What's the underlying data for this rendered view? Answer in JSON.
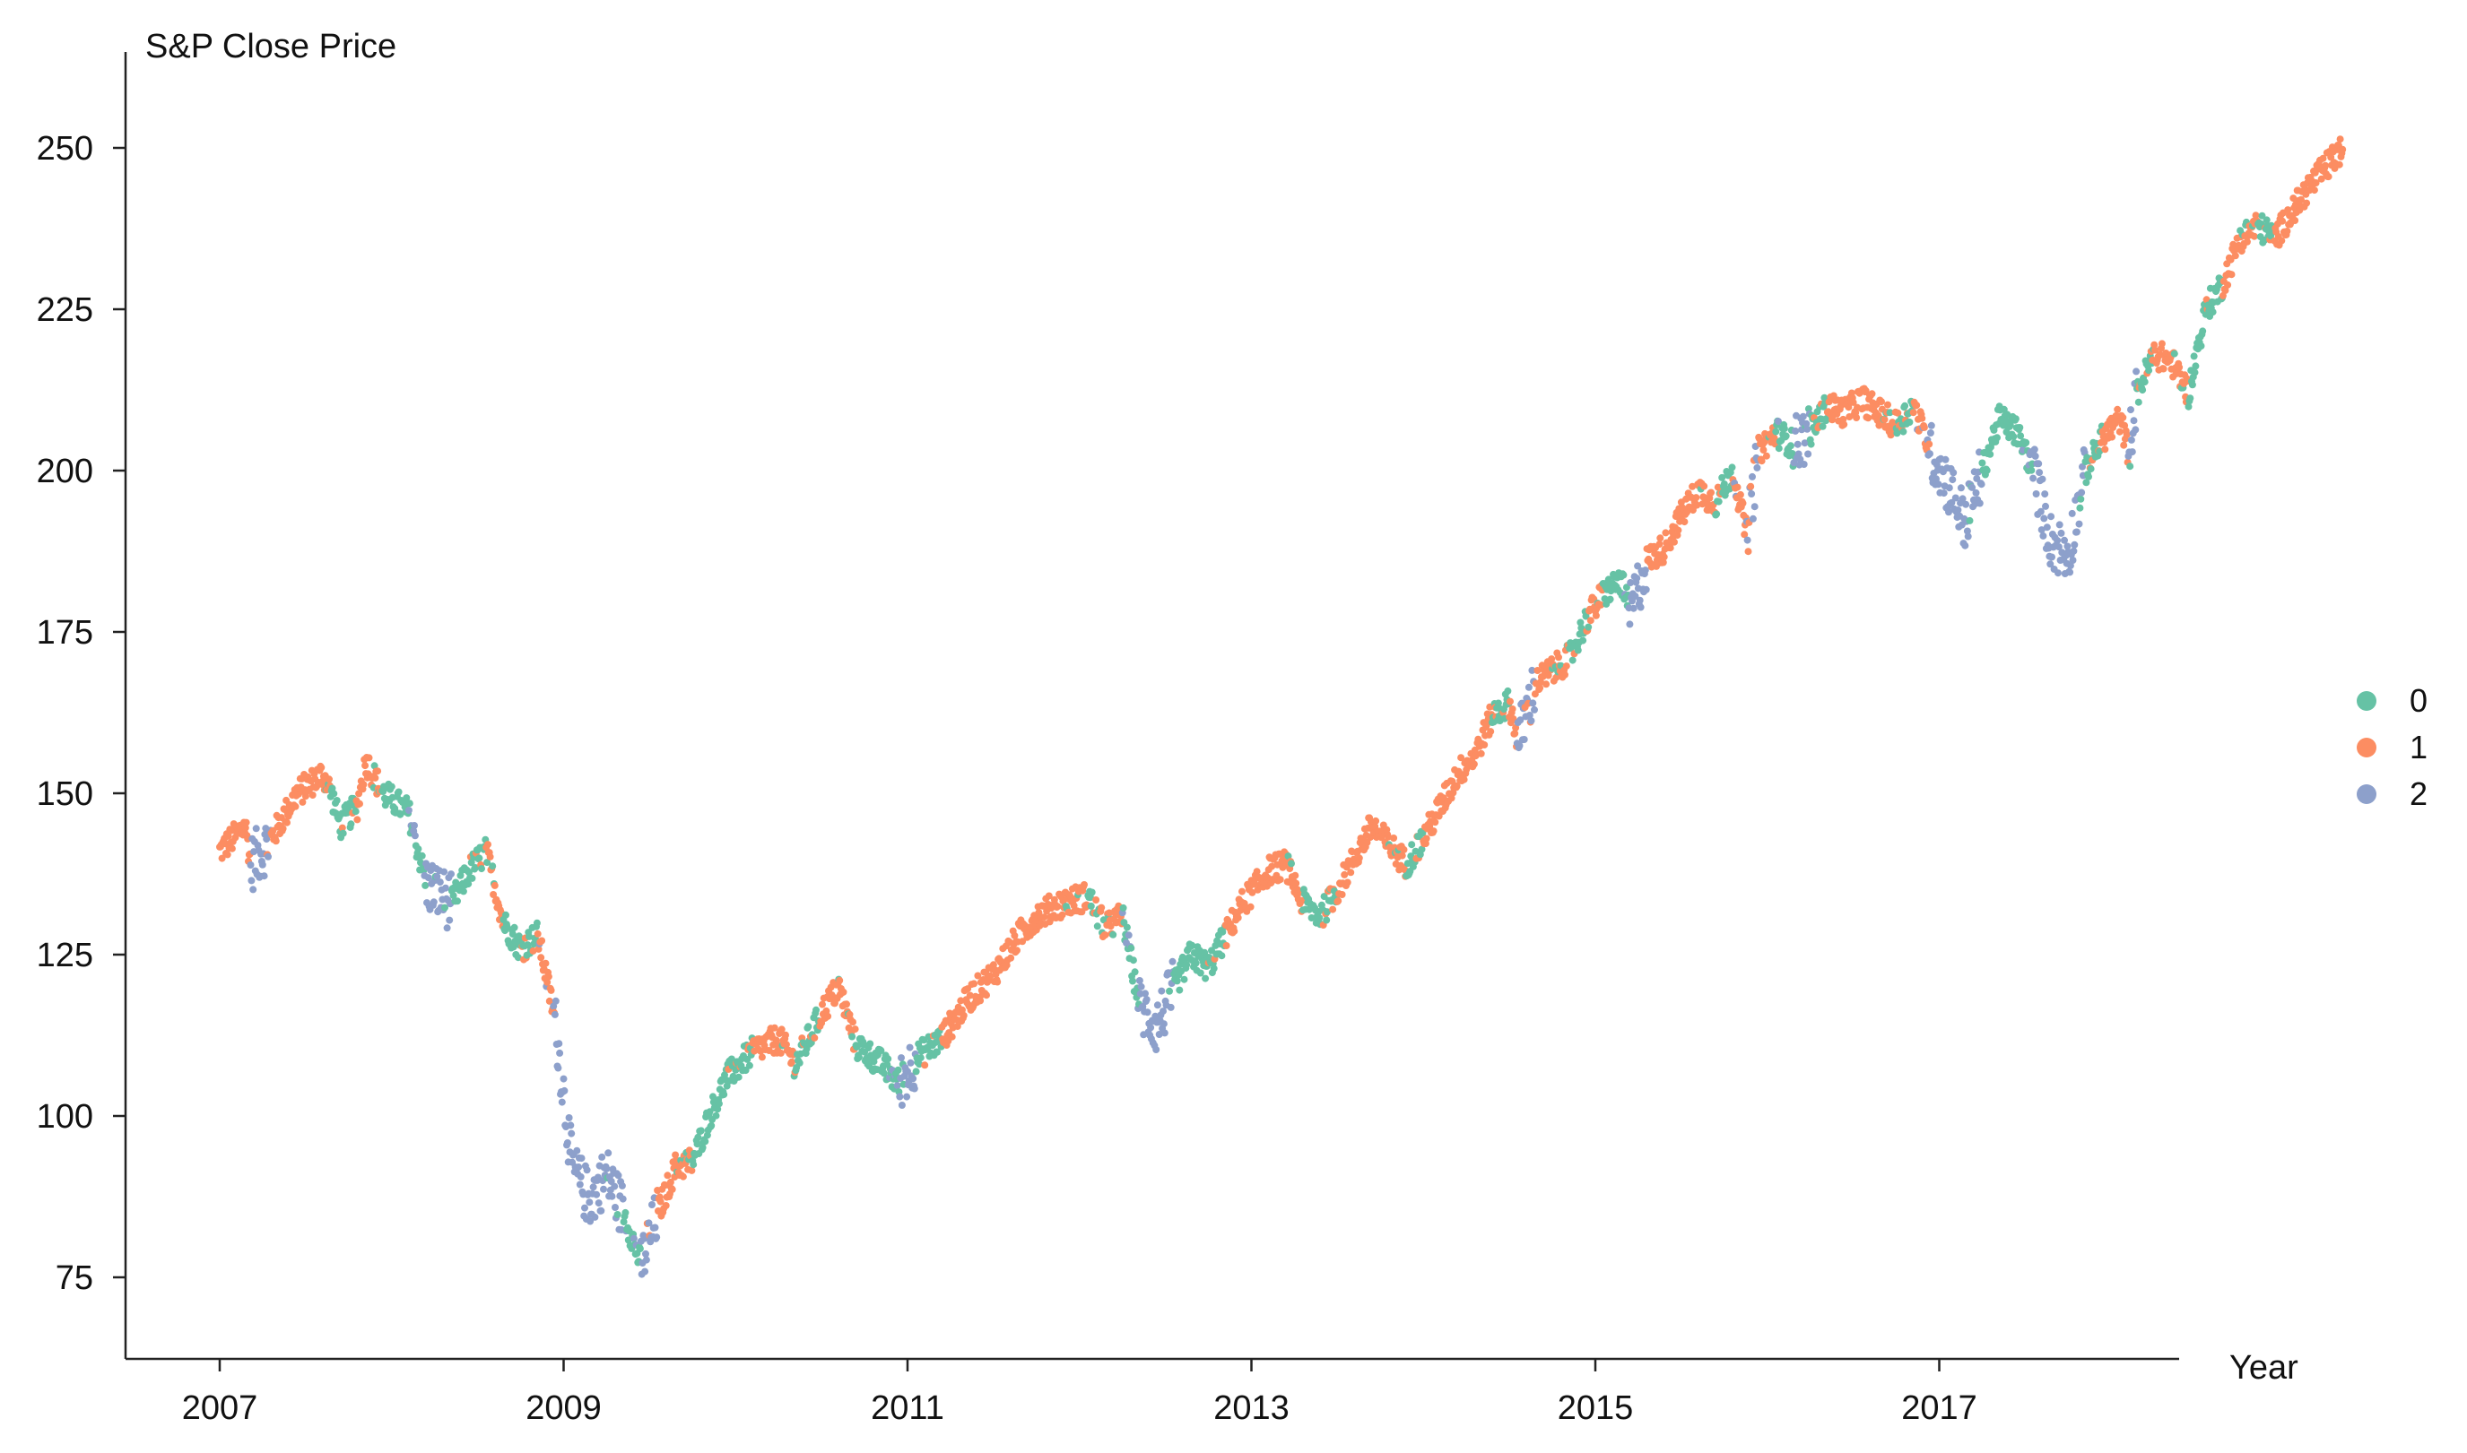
{
  "colors": {
    "cluster_0": "#66c2a5",
    "cluster_1": "#fc8d62",
    "cluster_2": "#8da0cb",
    "axis": "#222222"
  },
  "chart_data": {
    "type": "scatter",
    "title": "",
    "ylabel": "S&P Close Price",
    "xlabel": "Year",
    "x_scale": "time",
    "xlim": [
      2006.75,
      2018.75
    ],
    "ylim": [
      60,
      260
    ],
    "x_ticks": [
      "2007",
      "2009",
      "2011",
      "2013",
      "2015",
      "2017"
    ],
    "y_ticks": [
      "75",
      "100",
      "125",
      "150",
      "175",
      "200",
      "225",
      "250"
    ],
    "grid": false,
    "legend_position": "right",
    "legend": [
      "0",
      "1",
      "2"
    ],
    "price_path": [
      [
        2007.0,
        141,
        1
      ],
      [
        2007.15,
        145,
        1
      ],
      [
        2007.18,
        139,
        2
      ],
      [
        2007.3,
        143,
        1
      ],
      [
        2007.45,
        150,
        1
      ],
      [
        2007.6,
        153,
        1
      ],
      [
        2007.65,
        150,
        0
      ],
      [
        2007.7,
        145,
        0
      ],
      [
        2007.8,
        148,
        1
      ],
      [
        2007.85,
        155,
        1
      ],
      [
        2007.95,
        150,
        0
      ],
      [
        2008.1,
        147,
        0
      ],
      [
        2008.2,
        136,
        2
      ],
      [
        2008.35,
        133,
        0
      ],
      [
        2008.45,
        138,
        0
      ],
      [
        2008.55,
        141,
        1
      ],
      [
        2008.65,
        130,
        0
      ],
      [
        2008.75,
        126,
        0
      ],
      [
        2008.85,
        128,
        1
      ],
      [
        2008.95,
        115,
        2
      ],
      [
        2009.05,
        92,
        2
      ],
      [
        2009.15,
        87,
        2
      ],
      [
        2009.25,
        91,
        2
      ],
      [
        2009.35,
        85,
        0
      ],
      [
        2009.45,
        77,
        2
      ],
      [
        2009.55,
        85,
        1
      ],
      [
        2009.65,
        92,
        1
      ],
      [
        2009.75,
        93,
        0
      ],
      [
        2009.85,
        100,
        0
      ],
      [
        2009.95,
        106,
        0
      ],
      [
        2010.1,
        110,
        1
      ],
      [
        2010.25,
        112,
        1
      ],
      [
        2010.35,
        108,
        0
      ],
      [
        2010.5,
        116,
        1
      ],
      [
        2010.6,
        120,
        1
      ],
      [
        2010.7,
        111,
        0
      ],
      [
        2010.85,
        108,
        0
      ],
      [
        2010.95,
        105,
        2
      ],
      [
        2011.05,
        109,
        0
      ],
      [
        2011.2,
        112,
        1
      ],
      [
        2011.35,
        118,
        1
      ],
      [
        2011.5,
        122,
        1
      ],
      [
        2011.65,
        128,
        1
      ],
      [
        2011.75,
        131,
        1
      ],
      [
        2011.9,
        133,
        1
      ],
      [
        2012.05,
        134,
        0
      ],
      [
        2012.15,
        129,
        1
      ],
      [
        2012.25,
        131,
        0
      ],
      [
        2012.35,
        117,
        2
      ],
      [
        2012.45,
        114,
        2
      ],
      [
        2012.55,
        120,
        0
      ],
      [
        2012.65,
        125,
        0
      ],
      [
        2012.75,
        123,
        0
      ],
      [
        2012.85,
        128,
        1
      ],
      [
        2012.95,
        133,
        1
      ],
      [
        2013.1,
        138,
        1
      ],
      [
        2013.2,
        139,
        1
      ],
      [
        2013.3,
        133,
        0
      ],
      [
        2013.4,
        131,
        0
      ],
      [
        2013.5,
        135,
        1
      ],
      [
        2013.6,
        140,
        1
      ],
      [
        2013.7,
        145,
        1
      ],
      [
        2013.8,
        142,
        1
      ],
      [
        2013.9,
        139,
        0
      ],
      [
        2014.0,
        143,
        1
      ],
      [
        2014.1,
        148,
        1
      ],
      [
        2014.2,
        153,
        1
      ],
      [
        2014.3,
        156,
        1
      ],
      [
        2014.4,
        162,
        0
      ],
      [
        2014.5,
        164,
        1
      ],
      [
        2014.55,
        158,
        2
      ],
      [
        2014.65,
        167,
        1
      ],
      [
        2014.75,
        169,
        1
      ],
      [
        2014.85,
        171,
        0
      ],
      [
        2014.95,
        177,
        1
      ],
      [
        2015.05,
        181,
        0
      ],
      [
        2015.15,
        183,
        0
      ],
      [
        2015.2,
        178,
        2
      ],
      [
        2015.3,
        186,
        1
      ],
      [
        2015.4,
        188,
        1
      ],
      [
        2015.5,
        193,
        1
      ],
      [
        2015.6,
        197,
        1
      ],
      [
        2015.7,
        195,
        0
      ],
      [
        2015.8,
        200,
        1
      ],
      [
        2015.88,
        190,
        2
      ],
      [
        2015.95,
        203,
        1
      ],
      [
        2016.05,
        206,
        0
      ],
      [
        2016.15,
        204,
        2
      ],
      [
        2016.25,
        206,
        0
      ],
      [
        2016.35,
        210,
        1
      ],
      [
        2016.45,
        209,
        1
      ],
      [
        2016.55,
        211,
        1
      ],
      [
        2016.65,
        209,
        1
      ],
      [
        2016.75,
        207,
        0
      ],
      [
        2016.85,
        210,
        1
      ],
      [
        2016.95,
        203,
        2
      ],
      [
        2017.05,
        198,
        2
      ],
      [
        2017.15,
        192,
        2
      ],
      [
        2017.25,
        200,
        0
      ],
      [
        2017.35,
        208,
        0
      ],
      [
        2017.45,
        206,
        0
      ],
      [
        2017.55,
        200,
        2
      ],
      [
        2017.65,
        189,
        2
      ],
      [
        2017.75,
        187,
        2
      ],
      [
        2017.85,
        200,
        0
      ],
      [
        2017.95,
        205,
        1
      ],
      [
        2018.05,
        208,
        1
      ],
      [
        2018.1,
        203,
        2
      ],
      [
        2018.15,
        212,
        0
      ],
      [
        2018.25,
        218,
        1
      ],
      [
        2018.35,
        217,
        1
      ],
      [
        2018.45,
        212,
        0
      ],
      [
        2018.55,
        225,
        0
      ],
      [
        2018.65,
        229,
        1
      ],
      [
        2018.75,
        236,
        1
      ],
      [
        2018.85,
        238,
        0
      ],
      [
        2018.95,
        236,
        1
      ],
      [
        2019.05,
        240,
        1
      ],
      [
        2019.15,
        244,
        1
      ],
      [
        2019.25,
        247,
        1
      ],
      [
        2019.35,
        250,
        1
      ]
    ]
  }
}
